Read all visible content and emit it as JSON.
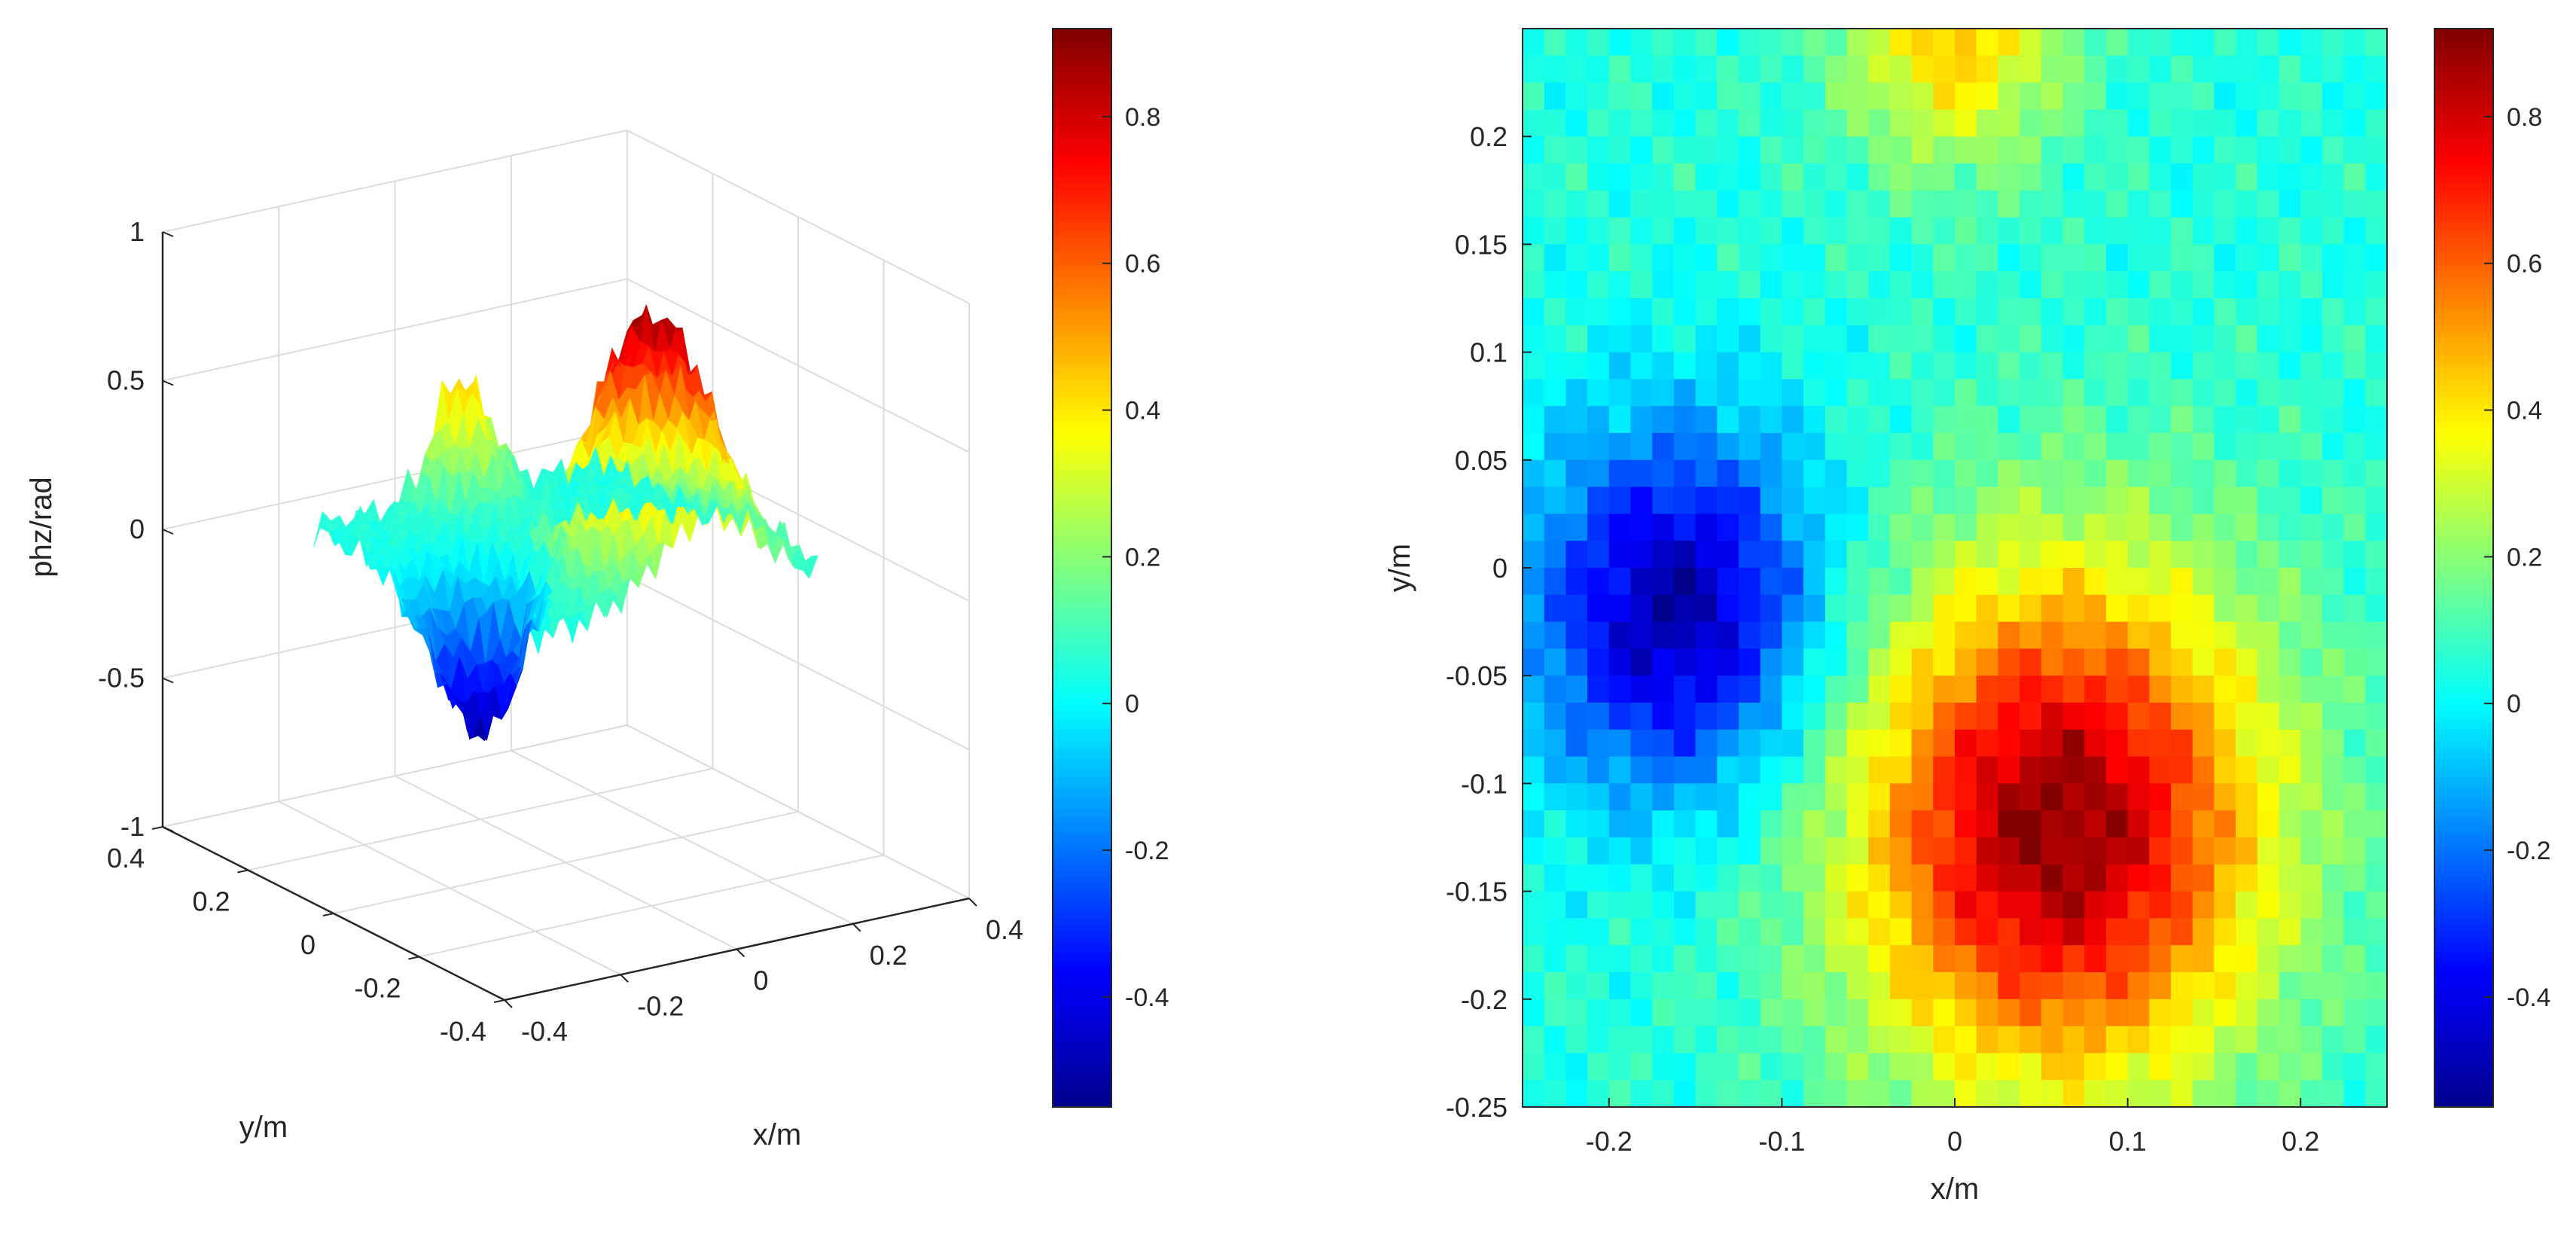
{
  "colormap": "jet",
  "colors": {
    "axis": "#262626",
    "grid": "#dcdcdc",
    "background": "#ffffff"
  },
  "chart_data": [
    {
      "type": "surface",
      "view": "3d",
      "xlabel": "x/m",
      "ylabel": "y/m",
      "zlabel": "phz/rad",
      "xlim": [
        -0.4,
        0.4
      ],
      "ylim": [
        -0.4,
        0.4
      ],
      "zlim": [
        -1,
        1
      ],
      "x_ticks": [
        "-0.4",
        "-0.2",
        "0",
        "0.2",
        "0.4"
      ],
      "y_ticks": [
        "-0.4",
        "-0.2",
        "0",
        "0.2",
        "0.4"
      ],
      "z_ticks": [
        "-1",
        "-0.5",
        "0",
        "0.5",
        "1"
      ],
      "grid": true,
      "surface": {
        "x_range": [
          -0.25,
          0.25
        ],
        "y_range": [
          -0.25,
          0.25
        ],
        "value_range": [
          -0.55,
          0.92
        ],
        "features": [
          {
            "x": 0.06,
            "y": -0.12,
            "value": 0.9
          },
          {
            "x": -0.16,
            "y": -0.02,
            "value": -0.5
          },
          {
            "x": 0.0,
            "y": 0.25,
            "value": 0.45
          }
        ]
      },
      "colorbar": {
        "ticks": [
          "-0.4",
          "-0.2",
          "0",
          "0.2",
          "0.4",
          "0.6",
          "0.8"
        ],
        "range": [
          -0.55,
          0.92
        ]
      }
    },
    {
      "type": "heatmap",
      "xlabel": "x/m",
      "ylabel": "y/m",
      "xlim": [
        -0.25,
        0.25
      ],
      "ylim": [
        -0.25,
        0.25
      ],
      "x_ticks": [
        "-0.2",
        "-0.1",
        "0",
        "0.1",
        "0.2"
      ],
      "y_ticks": [
        "-0.25",
        "-0.2",
        "-0.15",
        "-0.1",
        "-0.05",
        "0",
        "0.05",
        "0.1",
        "0.15",
        "0.2"
      ],
      "value_range": [
        -0.55,
        0.92
      ],
      "features": [
        {
          "x": 0.06,
          "y": -0.12,
          "value": 0.9
        },
        {
          "x": -0.16,
          "y": -0.02,
          "value": -0.5
        },
        {
          "x": 0.0,
          "y": 0.25,
          "value": 0.45
        }
      ],
      "colorbar": {
        "ticks": [
          "-0.4",
          "-0.2",
          "0",
          "0.2",
          "0.4",
          "0.6",
          "0.8"
        ],
        "range": [
          -0.55,
          0.92
        ]
      }
    }
  ]
}
